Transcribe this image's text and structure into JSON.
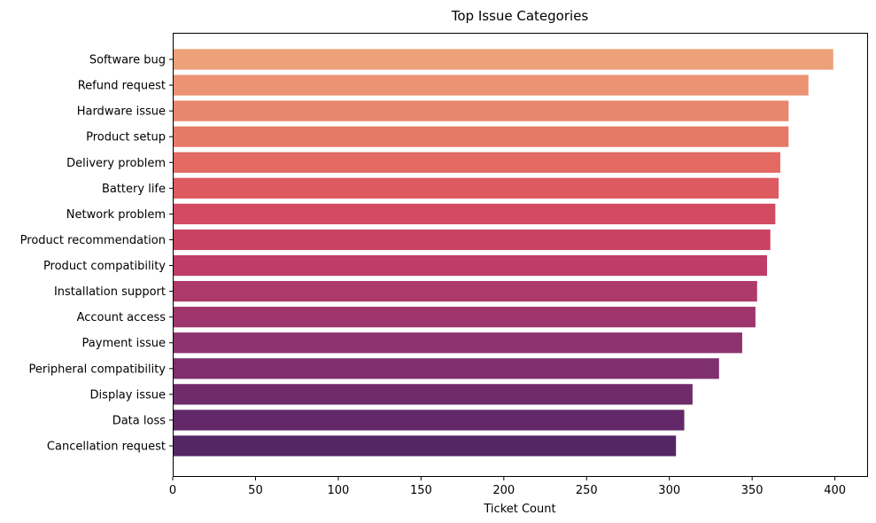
{
  "chart_data": {
    "type": "bar",
    "orientation": "horizontal",
    "title": "Top Issue Categories",
    "xlabel": "Ticket Count",
    "ylabel": "",
    "xlim": [
      0,
      420
    ],
    "xticks": [
      0,
      50,
      100,
      150,
      200,
      250,
      300,
      350,
      400
    ],
    "grid": false,
    "categories": [
      "Software bug",
      "Refund request",
      "Hardware issue",
      "Product setup",
      "Delivery problem",
      "Battery life",
      "Network problem",
      "Product recommendation",
      "Product compatibility",
      "Installation support",
      "Account access",
      "Payment issue",
      "Peripheral compatibility",
      "Display issue",
      "Data loss",
      "Cancellation request"
    ],
    "values": [
      399,
      384,
      372,
      372,
      367,
      366,
      364,
      361,
      359,
      353,
      352,
      344,
      330,
      314,
      309,
      304
    ],
    "colors": [
      "#eea078",
      "#eb9372",
      "#e9876c",
      "#e77a66",
      "#e26a62",
      "#dc5a60",
      "#d34b61",
      "#c94263",
      "#bd3d68",
      "#ae3a6b",
      "#9e366d",
      "#8f336f",
      "#7f2f6d",
      "#702b6a",
      "#622867",
      "#552664"
    ]
  }
}
